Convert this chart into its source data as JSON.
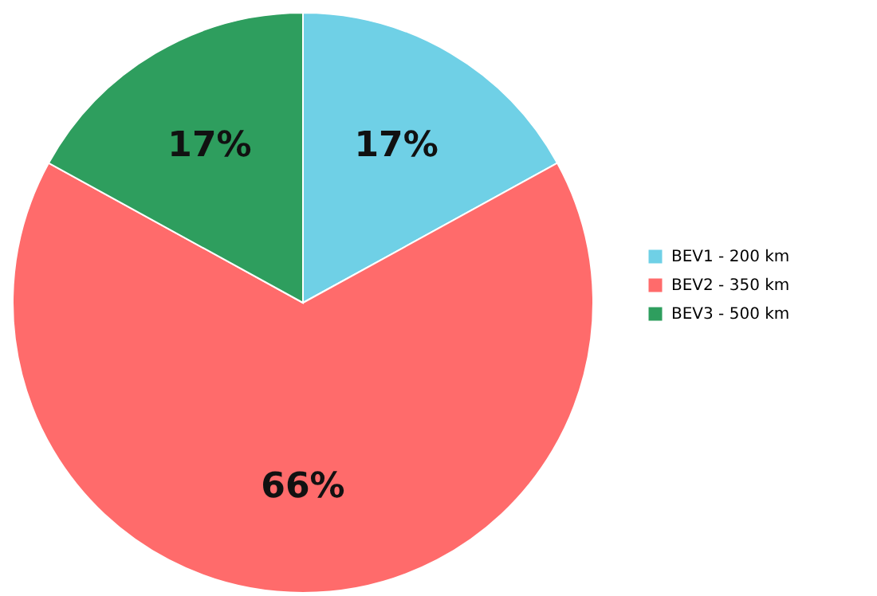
{
  "chart_data": {
    "type": "pie",
    "categories": [
      "BEV1 - 200 km",
      "BEV2 - 350 km",
      "BEV3 - 500 km"
    ],
    "values": [
      17,
      66,
      17
    ],
    "colors": [
      "#6fd0e6",
      "#ff6b6b",
      "#2e9e5e"
    ],
    "value_labels": [
      "17%",
      "66%",
      "17%"
    ],
    "legend": "right"
  }
}
